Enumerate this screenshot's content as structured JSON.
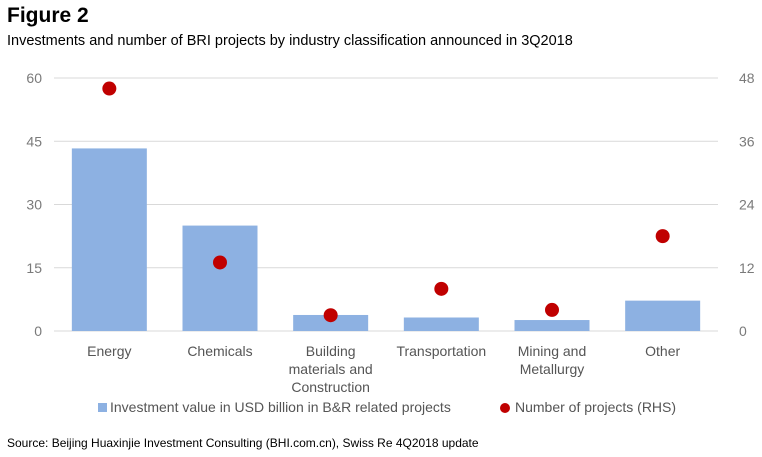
{
  "figure_label": "Figure 2",
  "source": "Source: Beijing Huaxinjie Investment Consulting (BHI.com.cn), Swiss Re 4Q2018 update",
  "colors": {
    "bar": "#8db1e2",
    "dot": "#c00000",
    "grid": "#d9d9d9",
    "axis_text": "#7a7a7a",
    "label_text": "#555555"
  },
  "chart_data": {
    "type": "bar",
    "title": "Investments and number of BRI projects by industry classification announced in 3Q2018",
    "categories": [
      [
        "Energy"
      ],
      [
        "Chemicals"
      ],
      [
        "Building",
        "materials and",
        "Construction"
      ],
      [
        "Transportation"
      ],
      [
        "Mining and",
        "Metallurgy"
      ],
      [
        "Other"
      ]
    ],
    "series": [
      {
        "name": "Investment value in USD billion in B&R related projects",
        "type": "bar",
        "axis": "left",
        "values": [
          43.3,
          25.0,
          3.8,
          3.2,
          2.6,
          7.2
        ]
      },
      {
        "name": "Number of projects (RHS)",
        "type": "scatter",
        "axis": "right",
        "values": [
          46,
          13,
          3,
          8,
          4,
          18
        ]
      }
    ],
    "ylim": [
      0,
      60
    ],
    "yticks": [
      "0",
      "15",
      "30",
      "45",
      "60"
    ],
    "y2lim": [
      0,
      48
    ],
    "y2ticks": [
      "0",
      "12",
      "24",
      "36",
      "48"
    ],
    "legend_position": "bottom"
  }
}
